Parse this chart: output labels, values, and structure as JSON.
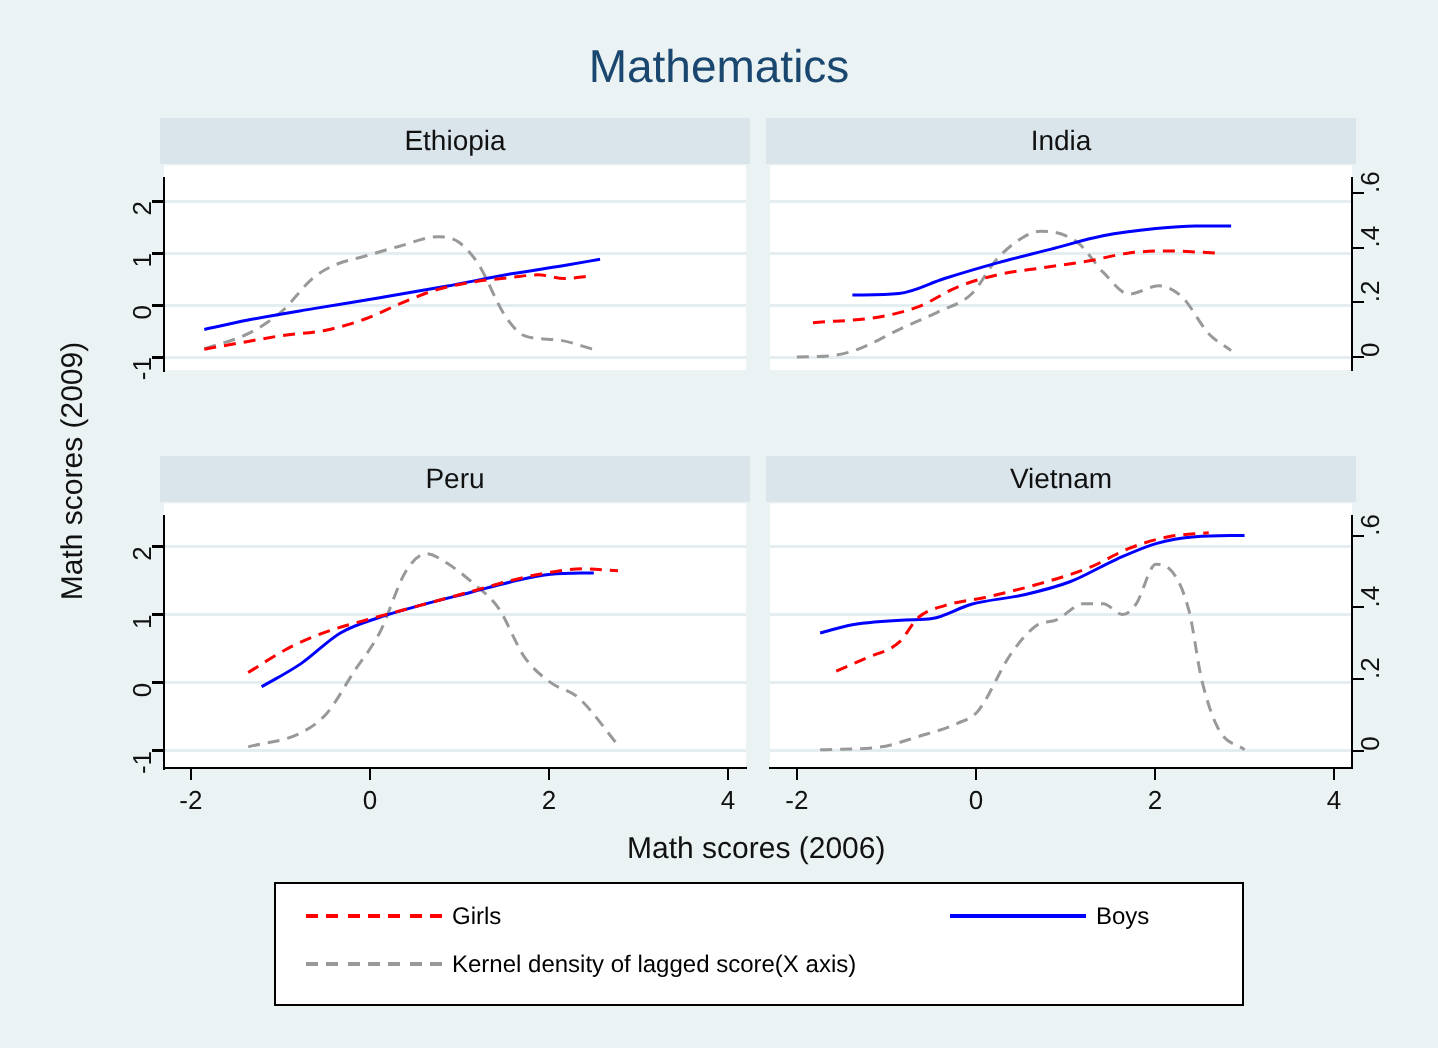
{
  "chart_data": [
    {
      "type": "line",
      "title": "Ethiopia",
      "annotations": [
        "Mathematics"
      ],
      "ylabel": "Math scores (2009)",
      "legend": "bottom",
      "grid": "y",
      "marker": "none",
      "tick_labels": "y",
      "xlim": [
        -2.3,
        4.2
      ],
      "ylim": [
        -1.25,
        2.45
      ],
      "yticks": [
        -1,
        0,
        1,
        2
      ],
      "y2lim": [
        -0.048,
        0.656
      ],
      "series": [
        {
          "name": "Girls",
          "color": "#ff0000",
          "line_style": "dashed",
          "x": [
            -1.85,
            -1.36,
            -0.99,
            -0.48,
            -0.04,
            0.33,
            0.7,
            1.14,
            1.58,
            1.88,
            2.17,
            2.46
          ],
          "values": [
            -0.85,
            -0.7,
            -0.59,
            -0.48,
            -0.26,
            0.02,
            0.27,
            0.44,
            0.53,
            0.58,
            0.51,
            0.56
          ]
        },
        {
          "name": "Boys",
          "color": "#0000ff",
          "line_style": "solid",
          "x": [
            -1.85,
            -1.36,
            -0.63,
            0.11,
            0.85,
            1.58,
            2.17,
            2.57
          ],
          "values": [
            -0.47,
            -0.29,
            -0.07,
            0.14,
            0.36,
            0.6,
            0.76,
            0.88
          ]
        },
        {
          "name": "Kernel density of lagged score(X axis)",
          "color": "#999999",
          "line_style": "dashed",
          "axis": "y2",
          "x": [
            -1.85,
            -1.36,
            -0.99,
            -0.63,
            -0.4,
            -0.04,
            0.33,
            0.77,
            0.99,
            1.21,
            1.51,
            1.73,
            2.1,
            2.5
          ],
          "values": [
            0.03,
            0.085,
            0.165,
            0.29,
            0.335,
            0.37,
            0.405,
            0.44,
            0.42,
            0.34,
            0.15,
            0.077,
            0.062,
            0.027
          ]
        }
      ]
    },
    {
      "type": "line",
      "title": "India",
      "grid": "y",
      "marker": "none",
      "tick_labels": "y2",
      "xlim": [
        -2.3,
        4.2
      ],
      "ylim": [
        -1.25,
        2.45
      ],
      "y2lim": [
        -0.048,
        0.656
      ],
      "y2ticks": [
        0,
        {
          "value": 0.2,
          "label": ".2"
        },
        {
          "value": 0.4,
          "label": ".4"
        },
        {
          "value": 0.6,
          "label": ".6"
        }
      ],
      "series": [
        {
          "color": "#ff0000",
          "line_style": "dashed",
          "x": [
            -1.82,
            -1.08,
            -0.64,
            -0.2,
            0.24,
            0.76,
            1.27,
            1.71,
            2.15,
            2.67
          ],
          "values": [
            -0.34,
            -0.23,
            -0.03,
            0.35,
            0.58,
            0.72,
            0.85,
            1.0,
            1.04,
            1.0
          ]
        },
        {
          "color": "#0000ff",
          "line_style": "solid",
          "x": [
            -1.38,
            -0.86,
            -0.35,
            0.24,
            0.83,
            1.42,
            2.01,
            2.45,
            2.85
          ],
          "values": [
            0.19,
            0.22,
            0.51,
            0.81,
            1.07,
            1.33,
            1.47,
            1.52,
            1.52
          ]
        },
        {
          "color": "#999999",
          "line_style": "dashed",
          "axis": "y2",
          "x": [
            -2,
            -1.6,
            -1.3,
            -0.86,
            -0.42,
            -0.05,
            0.24,
            0.54,
            0.72,
            1.13,
            1.42,
            1.71,
            2.04,
            2.3,
            2.6,
            2.85
          ],
          "values": [
            0,
            0.005,
            0.03,
            0.1,
            0.165,
            0.23,
            0.36,
            0.44,
            0.46,
            0.42,
            0.31,
            0.23,
            0.26,
            0.22,
            0.085,
            0.023
          ]
        }
      ]
    },
    {
      "type": "line",
      "title": "Peru",
      "xlabel": "Math scores (2006)",
      "grid": "y",
      "marker": "none",
      "tick_labels": "xy",
      "xlim": [
        -2.3,
        4.2
      ],
      "xticks": [
        -2,
        0,
        2,
        4
      ],
      "ylim": [
        -1.25,
        2.45
      ],
      "yticks": [
        -1,
        0,
        1,
        2
      ],
      "y2lim": [
        -0.048,
        0.656
      ],
      "series": [
        {
          "color": "#ff0000",
          "line_style": "dashed",
          "x": [
            -1.36,
            -0.92,
            -0.48,
            -0.04,
            0.55,
            1.14,
            1.58,
            2.02,
            2.39,
            2.77
          ],
          "values": [
            0.15,
            0.5,
            0.75,
            0.92,
            1.13,
            1.34,
            1.5,
            1.62,
            1.67,
            1.64
          ]
        },
        {
          "color": "#0000ff",
          "line_style": "solid",
          "x": [
            -1.21,
            -0.77,
            -0.33,
            0.11,
            0.55,
            1.14,
            1.58,
            2.02,
            2.5
          ],
          "values": [
            -0.06,
            0.28,
            0.73,
            0.96,
            1.13,
            1.33,
            1.48,
            1.59,
            1.61
          ]
        },
        {
          "color": "#999999",
          "line_style": "dashed",
          "axis": "y2",
          "x": [
            -1.36,
            -0.77,
            -0.48,
            -0.18,
            0.11,
            0.4,
            0.63,
            0.85,
            1.14,
            1.43,
            1.73,
            2.02,
            2.32,
            2.77
          ],
          "values": [
            0.011,
            0.05,
            0.105,
            0.22,
            0.33,
            0.5,
            0.55,
            0.525,
            0.47,
            0.4,
            0.26,
            0.19,
            0.15,
            0.016
          ]
        }
      ]
    },
    {
      "type": "line",
      "title": "Vietnam",
      "grid": "y",
      "marker": "none",
      "tick_labels": "xy2",
      "xlim": [
        -2.3,
        4.2
      ],
      "xticks": [
        -2,
        0,
        2,
        4
      ],
      "ylim": [
        -1.25,
        2.45
      ],
      "y2lim": [
        -0.048,
        0.656
      ],
      "y2ticks": [
        0,
        {
          "value": 0.2,
          "label": ".2"
        },
        {
          "value": 0.4,
          "label": ".4"
        },
        {
          "value": 0.6,
          "label": ".6"
        }
      ],
      "series": [
        {
          "color": "#ff0000",
          "line_style": "dashed",
          "x": [
            -1.56,
            -1.23,
            -0.86,
            -0.64,
            -0.35,
            0.1,
            0.68,
            1.27,
            1.71,
            2.15,
            2.6
          ],
          "values": [
            0.17,
            0.36,
            0.59,
            0.96,
            1.13,
            1.25,
            1.44,
            1.69,
            1.97,
            2.14,
            2.2
          ]
        },
        {
          "color": "#0000ff",
          "line_style": "solid",
          "x": [
            -1.74,
            -1.38,
            -0.79,
            -0.49,
            -0.05,
            0.54,
            1.05,
            1.57,
            2.01,
            2.45,
            3.0
          ],
          "values": [
            0.73,
            0.85,
            0.92,
            0.94,
            1.15,
            1.29,
            1.48,
            1.81,
            2.04,
            2.14,
            2.16
          ]
        },
        {
          "color": "#999999",
          "line_style": "dashed",
          "axis": "y2",
          "x": [
            -1.74,
            -1.08,
            -0.64,
            -0.2,
            0.02,
            0.39,
            0.68,
            0.9,
            1.2,
            1.42,
            1.64,
            1.79,
            2.01,
            2.15,
            2.38,
            2.52,
            2.71,
            3.0
          ],
          "values": [
            0.003,
            0.01,
            0.04,
            0.077,
            0.11,
            0.27,
            0.35,
            0.365,
            0.41,
            0.41,
            0.38,
            0.41,
            0.52,
            0.51,
            0.39,
            0.2,
            0.06,
            0.003
          ]
        }
      ]
    }
  ]
}
